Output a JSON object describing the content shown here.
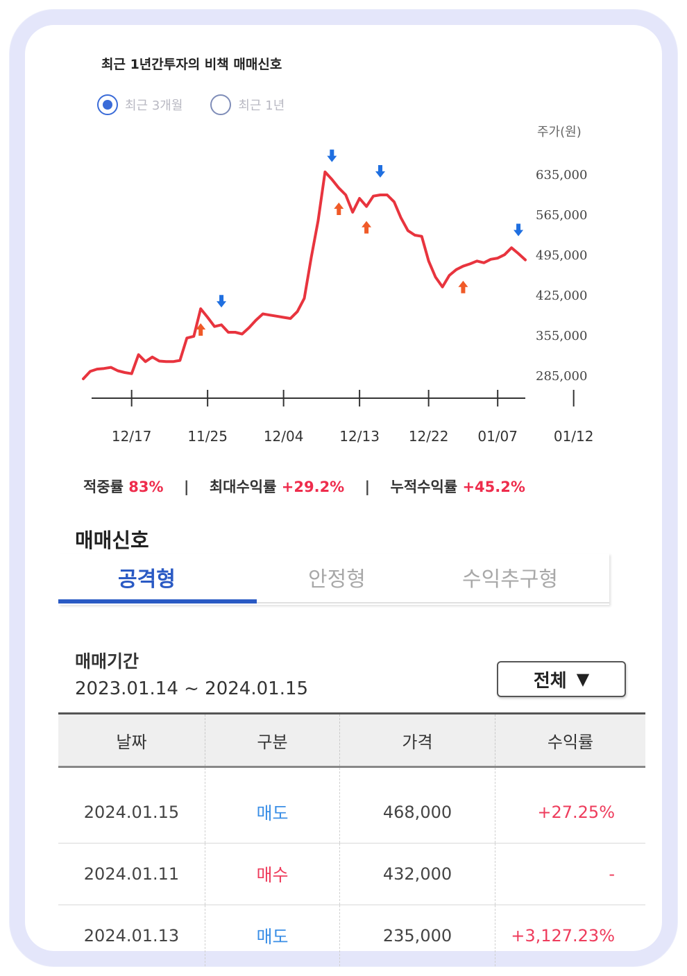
{
  "header": {
    "title": "최근 1년간투자의 비책 매매신호"
  },
  "period_options": [
    {
      "label": "최근 3개월",
      "checked": true
    },
    {
      "label": "최근 1년",
      "checked": false
    }
  ],
  "chart_data": {
    "type": "line",
    "ylabel": "주가(원)",
    "ylim": [
      250000,
      660000
    ],
    "y_ticks": [
      285000,
      355000,
      425000,
      495000,
      565000,
      635000
    ],
    "y_tick_labels": [
      "285,000",
      "355,000",
      "425,000",
      "495,000",
      "565,000",
      "635,000"
    ],
    "x_tick_labels": [
      "12/17",
      "11/25",
      "12/04",
      "12/13",
      "12/22",
      "01/07",
      "01/12"
    ],
    "x_tick_index": [
      7,
      18,
      29,
      40,
      50,
      60,
      71
    ],
    "series": [
      {
        "color": "#e8343e",
        "values": [
          280000,
          293000,
          297000,
          298000,
          300000,
          294000,
          291000,
          289000,
          322000,
          310000,
          318000,
          311000,
          310000,
          310000,
          312000,
          351000,
          354000,
          402000,
          387000,
          371000,
          374000,
          361000,
          361000,
          358000,
          369000,
          382000,
          393000,
          391000,
          389000,
          387000,
          385000,
          397000,
          420000,
          491000,
          555000,
          640000,
          627000,
          612000,
          600000,
          570000,
          594000,
          580000,
          598000,
          600000,
          600000,
          588000,
          560000,
          538000,
          530000,
          528000,
          485000,
          457000,
          440000,
          460000,
          470000,
          476000,
          480000,
          485000,
          482000,
          488000,
          490000,
          496000,
          508000,
          498000,
          487000
        ]
      }
    ],
    "signals": [
      {
        "type": "buy",
        "index": 17
      },
      {
        "type": "sell",
        "index": 20
      },
      {
        "type": "sell",
        "index": 36
      },
      {
        "type": "buy",
        "index": 37
      },
      {
        "type": "buy",
        "index": 41
      },
      {
        "type": "sell",
        "index": 43
      },
      {
        "type": "buy",
        "index": 55
      },
      {
        "type": "sell",
        "index": 63
      }
    ],
    "colors": {
      "buy": "#f05a28",
      "sell": "#1f6fe0"
    }
  },
  "stats": {
    "hit_rate_label": "적중률",
    "hit_rate_value": "83%",
    "max_return_label": "최대수익률",
    "max_return_value": "+29.2%",
    "cum_return_label": "누적수익률",
    "cum_return_value": "+45.2%",
    "separator": "|"
  },
  "signal_section": {
    "title": "매매신호"
  },
  "tabs": [
    {
      "label": "공격형",
      "active": true
    },
    {
      "label": "안정형",
      "active": false
    },
    {
      "label": "수익추구형",
      "active": false
    }
  ],
  "trade_period": {
    "label": "매매기간",
    "value": "2023.01.14 ~ 2024.01.15"
  },
  "filter": {
    "label": "전체",
    "arrow": "▼"
  },
  "table": {
    "headers": [
      "날짜",
      "구분",
      "가격",
      "수익률"
    ],
    "rows": [
      {
        "date": "2024.01.15",
        "type": "매도",
        "kind": "sell",
        "price": "468,000",
        "return": "+27.25%"
      },
      {
        "date": "2024.01.11",
        "type": "매수",
        "kind": "buy",
        "price": "432,000",
        "return": "-"
      },
      {
        "date": "2024.01.13",
        "type": "매도",
        "kind": "sell",
        "price": "235,000",
        "return": "+3,127.23%"
      }
    ]
  }
}
